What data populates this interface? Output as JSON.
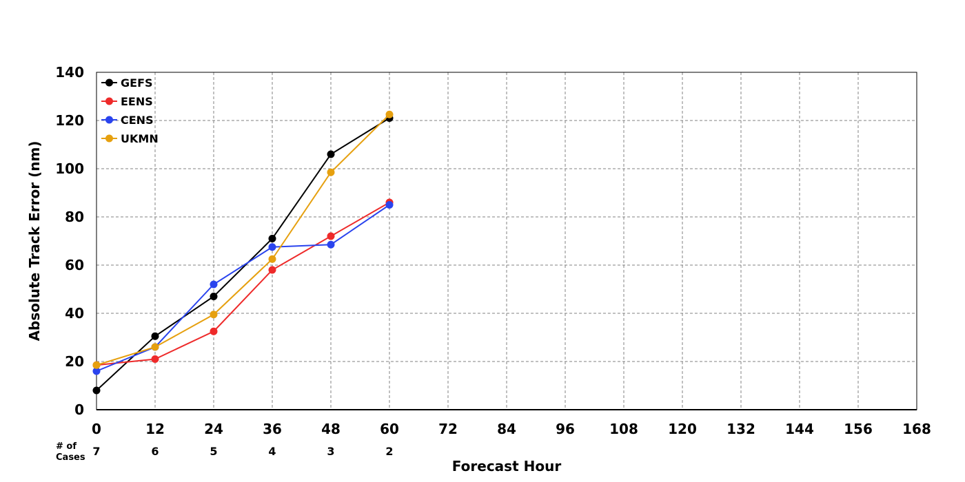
{
  "chart_data": {
    "type": "line",
    "title": "",
    "xlabel": "Forecast Hour",
    "ylabel": "Absolute Track Error (nm)",
    "xlim": [
      0,
      168
    ],
    "ylim": [
      0,
      140
    ],
    "xticks": [
      0,
      12,
      24,
      36,
      48,
      60,
      72,
      84,
      96,
      108,
      120,
      132,
      144,
      156,
      168
    ],
    "yticks": [
      0,
      20,
      40,
      60,
      80,
      100,
      120,
      140
    ],
    "grid": true,
    "legend_position": "top-left",
    "x": [
      0,
      12,
      24,
      36,
      48,
      60
    ],
    "series": [
      {
        "name": "GEFS",
        "color": "#000000",
        "values": [
          8,
          30.5,
          47,
          71,
          106,
          121
        ]
      },
      {
        "name": "EENS",
        "color": "#ee2a2a",
        "values": [
          18.5,
          21,
          32.5,
          58,
          72,
          86
        ]
      },
      {
        "name": "CENS",
        "color": "#2a44ee",
        "values": [
          16,
          26,
          52,
          67.5,
          68.5,
          85
        ]
      },
      {
        "name": "UKMN",
        "color": "#e6a00f",
        "values": [
          18.5,
          26,
          39.5,
          62.5,
          98.5,
          122.5
        ]
      }
    ],
    "cases_label": [
      "# of",
      "Cases"
    ],
    "cases": [
      {
        "hour": 0,
        "count": "7"
      },
      {
        "hour": 12,
        "count": "6"
      },
      {
        "hour": 24,
        "count": "5"
      },
      {
        "hour": 36,
        "count": "4"
      },
      {
        "hour": 48,
        "count": "3"
      },
      {
        "hour": 60,
        "count": "2"
      }
    ]
  }
}
